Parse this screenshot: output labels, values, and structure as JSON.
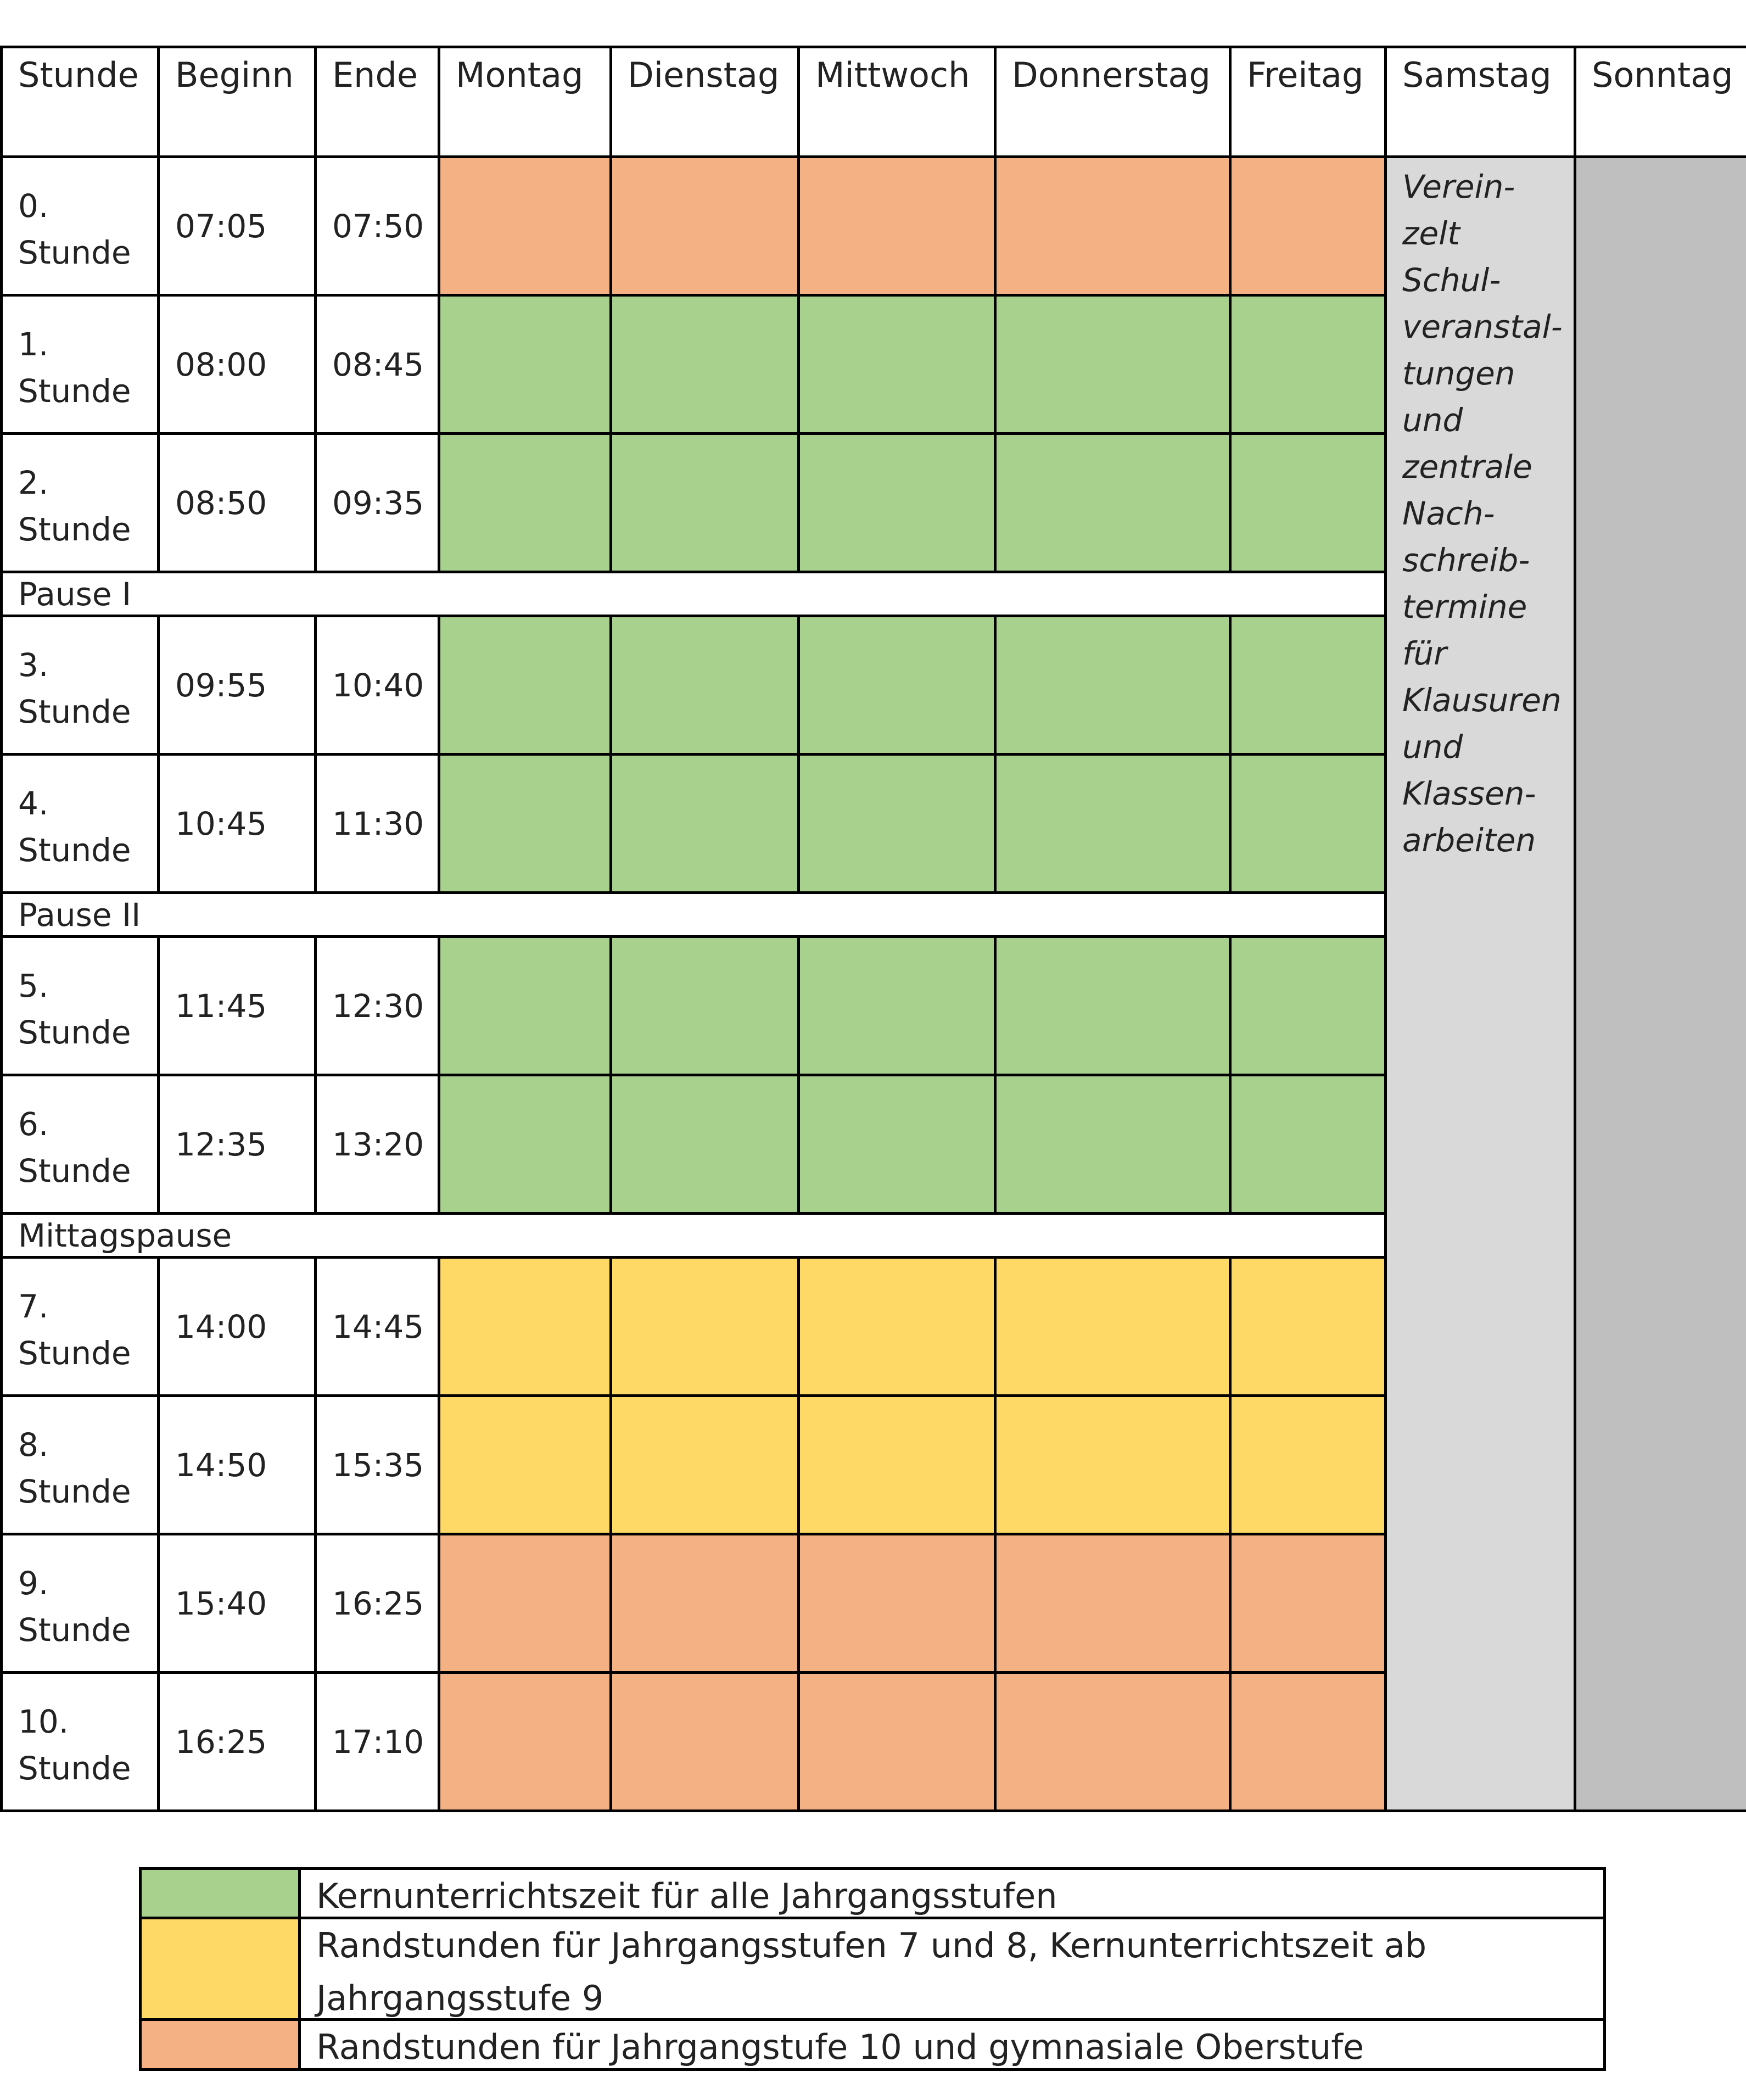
{
  "headers": [
    "Stunde",
    "Beginn",
    "Ende",
    "Montag",
    "Dienstag",
    "Mittwoch",
    "Donnerstag",
    "Freitag",
    "Samstag",
    "Sonntag"
  ],
  "colors": {
    "core": "#a9d18e",
    "edge_7_8": "#ffd966",
    "edge_10_ober": "#f4b183",
    "saturday": "#d9d9d9",
    "sunday": "#bfbfbf"
  },
  "rows": [
    {
      "type": "lesson",
      "label": "0. Stunde",
      "begin": "07:05",
      "end": "07:50",
      "category": "edge_10_ober"
    },
    {
      "type": "lesson",
      "label": "1. Stunde",
      "begin": "08:00",
      "end": "08:45",
      "category": "core"
    },
    {
      "type": "lesson",
      "label": "2. Stunde",
      "begin": "08:50",
      "end": "09:35",
      "category": "core"
    },
    {
      "type": "break",
      "label": "Pause I"
    },
    {
      "type": "lesson",
      "label": "3. Stunde",
      "begin": "09:55",
      "end": "10:40",
      "category": "core"
    },
    {
      "type": "lesson",
      "label": "4. Stunde",
      "begin": "10:45",
      "end": "11:30",
      "category": "core"
    },
    {
      "type": "break",
      "label": "Pause II"
    },
    {
      "type": "lesson",
      "label": "5. Stunde",
      "begin": "11:45",
      "end": "12:30",
      "category": "core"
    },
    {
      "type": "lesson",
      "label": "6. Stunde",
      "begin": "12:35",
      "end": "13:20",
      "category": "core"
    },
    {
      "type": "break",
      "label": "Mittagspause"
    },
    {
      "type": "lesson",
      "label": "7. Stunde",
      "begin": "14:00",
      "end": "14:45",
      "category": "edge_7_8"
    },
    {
      "type": "lesson",
      "label": "8. Stunde",
      "begin": "14:50",
      "end": "15:35",
      "category": "edge_7_8"
    },
    {
      "type": "lesson",
      "label": "9. Stunde",
      "begin": "15:40",
      "end": "16:25",
      "category": "edge_10_ober"
    },
    {
      "type": "lesson",
      "label": "10. Stunde",
      "begin": "16:25",
      "end": "17:10",
      "category": "edge_10_ober"
    }
  ],
  "saturday_note": "Verein-\nzelt Schul-\nveranstal-\ntungen\nund\nzentrale\nNach-\nschreib-\ntermine\nfür\nKlausuren\nund\nKlassen-\narbeiten",
  "legend": [
    {
      "category": "core",
      "text": "Kernunterrichtszeit für alle Jahrgangsstufen"
    },
    {
      "category": "edge_7_8",
      "text": "Randstunden für Jahrgangsstufen 7 und 8, Kernunterrichtszeit ab Jahrgangsstufe 9"
    },
    {
      "category": "edge_10_ober",
      "text": "Randstunden für Jahrgangstufe 10 und gymnasiale Oberstufe"
    }
  ]
}
